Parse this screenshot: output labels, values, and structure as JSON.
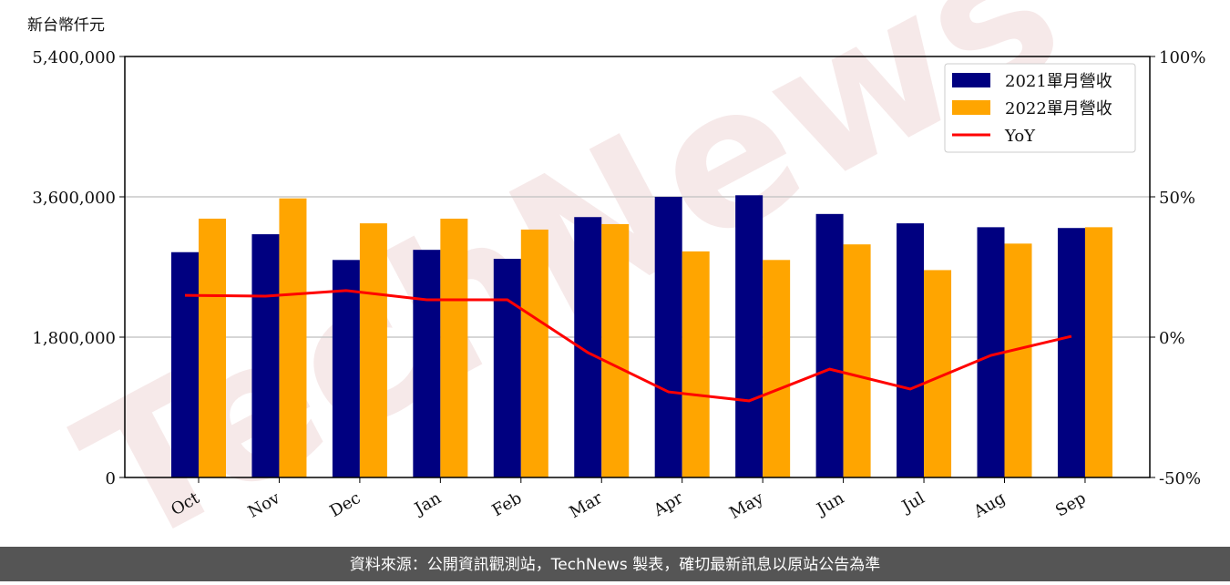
{
  "chart_data": {
    "type": "bar_line",
    "y_label": "新台幣仟元",
    "watermark": "TechNews",
    "categories": [
      "Oct",
      "Nov",
      "Dec",
      "Jan",
      "Feb",
      "Mar",
      "Apr",
      "May",
      "Jun",
      "Jul",
      "Aug",
      "Sep"
    ],
    "series": [
      {
        "name": "2021單月營收",
        "color": "#000080",
        "type": "bar",
        "values": [
          2890000,
          3120000,
          2790000,
          2920000,
          2805000,
          3340000,
          3600000,
          3620000,
          3380000,
          3260000,
          3210000,
          3200000
        ]
      },
      {
        "name": "2022單月營收",
        "color": "#ffa500",
        "type": "bar",
        "values": [
          3320000,
          3580000,
          3260000,
          3320000,
          3180000,
          3250000,
          2900000,
          2790000,
          2990000,
          2660000,
          3000000,
          3210000
        ]
      },
      {
        "name": "YoY",
        "color": "#ff0000",
        "type": "line",
        "axis": "y2",
        "values": [
          14.9,
          14.6,
          16.6,
          13.3,
          13.3,
          -5.5,
          -19.5,
          -22.7,
          -11.4,
          -18.5,
          -6.5,
          0.3
        ]
      }
    ],
    "ylim": [
      0,
      5400000
    ],
    "yticks": [
      0,
      {
        "value": 1800000,
        "label": "1,800,000"
      },
      {
        "value": 3600000,
        "label": "3,600,000"
      },
      {
        "value": 5400000,
        "label": "5,400,000"
      }
    ],
    "y2lim": [
      -50,
      100
    ],
    "y2ticks": [
      {
        "value": -50,
        "label": "-50%"
      },
      {
        "value": 0,
        "label": "0%"
      },
      {
        "value": 50,
        "label": "50%"
      },
      {
        "value": 100,
        "label": "100%"
      }
    ],
    "grid": true,
    "legend": "upper right",
    "footer": "資料來源：公開資訊觀測站，TechNews 製表，確切最新訊息以原站公告為準"
  }
}
